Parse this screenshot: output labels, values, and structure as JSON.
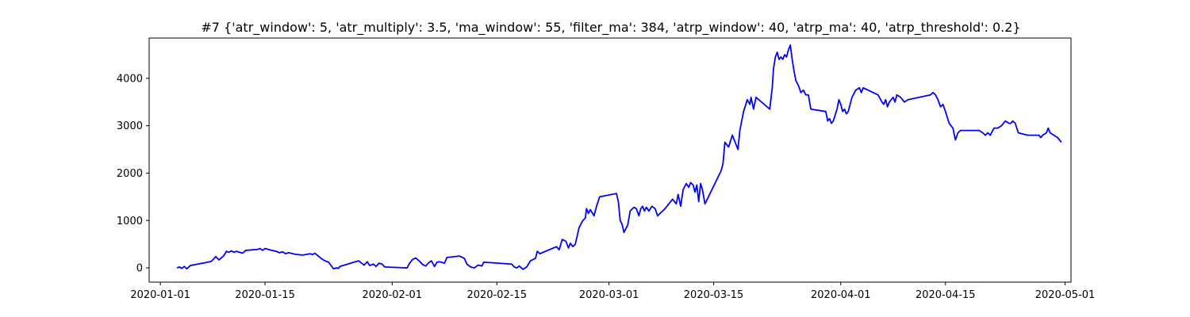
{
  "chart_data": {
    "type": "line",
    "title": "#7 {'atr_window': 5, 'atr_multiply': 3.5, 'ma_window': 55, 'filter_ma': 384, 'atrp_window': 40, 'atrp_ma': 40, 'atrp_threshold': 0.2}",
    "xlabel": "",
    "ylabel": "",
    "x_is_date": true,
    "xlim": [
      "2019-12-30T12:00",
      "2020-05-01T19:00"
    ],
    "ylim": [
      -300,
      4850
    ],
    "xticks": [
      "2020-01-01",
      "2020-01-15",
      "2020-02-01",
      "2020-02-15",
      "2020-03-01",
      "2020-03-15",
      "2020-04-01",
      "2020-04-15",
      "2020-05-01"
    ],
    "yticks": [
      0,
      1000,
      2000,
      3000,
      4000
    ],
    "grid": false,
    "legend": "none",
    "series": [
      {
        "color": "#0000ff",
        "points": [
          [
            "2020-01-03T05:00",
            0
          ],
          [
            "2020-01-03T13:00",
            20
          ],
          [
            "2020-01-03T21:00",
            -10
          ],
          [
            "2020-01-04T05:00",
            30
          ],
          [
            "2020-01-04T13:00",
            -20
          ],
          [
            "2020-01-05T00:00",
            50
          ],
          [
            "2020-01-06T00:00",
            80
          ],
          [
            "2020-01-07T00:00",
            110
          ],
          [
            "2020-01-07T20:00",
            140
          ],
          [
            "2020-01-08T10:00",
            240
          ],
          [
            "2020-01-08T20:00",
            170
          ],
          [
            "2020-01-09T12:00",
            260
          ],
          [
            "2020-01-09T20:00",
            350
          ],
          [
            "2020-01-10T04:00",
            330
          ],
          [
            "2020-01-10T12:00",
            360
          ],
          [
            "2020-01-10T20:00",
            330
          ],
          [
            "2020-01-11T04:00",
            350
          ],
          [
            "2020-01-12T00:00",
            310
          ],
          [
            "2020-01-12T10:00",
            370
          ],
          [
            "2020-01-14T00:00",
            390
          ],
          [
            "2020-01-14T08:00",
            410
          ],
          [
            "2020-01-14T16:00",
            370
          ],
          [
            "2020-01-15T00:00",
            410
          ],
          [
            "2020-01-15T16:00",
            380
          ],
          [
            "2020-01-16T12:00",
            350
          ],
          [
            "2020-01-16T22:00",
            320
          ],
          [
            "2020-01-17T08:00",
            340
          ],
          [
            "2020-01-17T18:00",
            300
          ],
          [
            "2020-01-18T04:00",
            320
          ],
          [
            "2020-01-19T00:00",
            290
          ],
          [
            "2020-01-20T00:00",
            270
          ],
          [
            "2020-01-21T02:00",
            300
          ],
          [
            "2020-01-21T08:00",
            280
          ],
          [
            "2020-01-21T16:00",
            310
          ],
          [
            "2020-01-22T12:00",
            200
          ],
          [
            "2020-01-23T00:00",
            150
          ],
          [
            "2020-01-23T12:00",
            120
          ],
          [
            "2020-01-24T04:00",
            -20
          ],
          [
            "2020-01-24T12:00",
            0
          ],
          [
            "2020-01-24T20:00",
            -10
          ],
          [
            "2020-01-25T00:00",
            30
          ],
          [
            "2020-01-27T12:00",
            150
          ],
          [
            "2020-01-28T06:00",
            60
          ],
          [
            "2020-01-28T16:00",
            130
          ],
          [
            "2020-01-29T00:00",
            50
          ],
          [
            "2020-01-29T12:00",
            80
          ],
          [
            "2020-01-29T20:00",
            30
          ],
          [
            "2020-01-30T06:00",
            100
          ],
          [
            "2020-01-30T16:00",
            80
          ],
          [
            "2020-01-31T00:00",
            20
          ],
          [
            "2020-02-03T00:00",
            0
          ],
          [
            "2020-02-03T08:00",
            100
          ],
          [
            "2020-02-03T18:00",
            180
          ],
          [
            "2020-02-04T04:00",
            210
          ],
          [
            "2020-02-04T16:00",
            140
          ],
          [
            "2020-02-05T02:00",
            70
          ],
          [
            "2020-02-05T12:00",
            40
          ],
          [
            "2020-02-05T20:00",
            100
          ],
          [
            "2020-02-06T06:00",
            150
          ],
          [
            "2020-02-06T16:00",
            30
          ],
          [
            "2020-02-07T00:00",
            120
          ],
          [
            "2020-02-07T08:00",
            130
          ],
          [
            "2020-02-08T00:00",
            100
          ],
          [
            "2020-02-08T08:00",
            220
          ],
          [
            "2020-02-10T00:00",
            250
          ],
          [
            "2020-02-10T16:00",
            200
          ],
          [
            "2020-02-11T00:00",
            80
          ],
          [
            "2020-02-11T12:00",
            20
          ],
          [
            "2020-02-12T00:00",
            0
          ],
          [
            "2020-02-12T12:00",
            60
          ],
          [
            "2020-02-13T00:00",
            40
          ],
          [
            "2020-02-13T06:00",
            120
          ],
          [
            "2020-02-17T00:00",
            80
          ],
          [
            "2020-02-17T08:00",
            20
          ],
          [
            "2020-02-17T16:00",
            0
          ],
          [
            "2020-02-18T00:00",
            40
          ],
          [
            "2020-02-18T12:00",
            -30
          ],
          [
            "2020-02-19T00:00",
            20
          ],
          [
            "2020-02-19T12:00",
            150
          ],
          [
            "2020-02-20T04:00",
            200
          ],
          [
            "2020-02-20T10:00",
            350
          ],
          [
            "2020-02-20T18:00",
            300
          ],
          [
            "2020-02-23T00:00",
            450
          ],
          [
            "2020-02-23T08:00",
            380
          ],
          [
            "2020-02-23T18:00",
            600
          ],
          [
            "2020-02-24T06:00",
            560
          ],
          [
            "2020-02-24T14:00",
            420
          ],
          [
            "2020-02-24T20:00",
            520
          ],
          [
            "2020-02-25T04:00",
            450
          ],
          [
            "2020-02-25T12:00",
            500
          ],
          [
            "2020-02-26T00:00",
            850
          ],
          [
            "2020-02-26T12:00",
            1000
          ],
          [
            "2020-02-26T20:00",
            1050
          ],
          [
            "2020-02-27T00:00",
            1250
          ],
          [
            "2020-02-27T06:00",
            1150
          ],
          [
            "2020-02-27T12:00",
            1230
          ],
          [
            "2020-02-28T00:00",
            1100
          ],
          [
            "2020-02-28T08:00",
            1300
          ],
          [
            "2020-02-28T18:00",
            1500
          ],
          [
            "2020-03-02T00:00",
            1570
          ],
          [
            "2020-03-02T06:00",
            1400
          ],
          [
            "2020-03-02T12:00",
            1000
          ],
          [
            "2020-03-02T18:00",
            920
          ],
          [
            "2020-03-03T00:00",
            750
          ],
          [
            "2020-03-03T12:00",
            900
          ],
          [
            "2020-03-03T20:00",
            1200
          ],
          [
            "2020-03-04T08:00",
            1280
          ],
          [
            "2020-03-04T16:00",
            1250
          ],
          [
            "2020-03-05T00:00",
            1100
          ],
          [
            "2020-03-05T06:00",
            1250
          ],
          [
            "2020-03-05T12:00",
            1300
          ],
          [
            "2020-03-05T18:00",
            1200
          ],
          [
            "2020-03-06T00:00",
            1280
          ],
          [
            "2020-03-06T08:00",
            1200
          ],
          [
            "2020-03-06T18:00",
            1300
          ],
          [
            "2020-03-07T04:00",
            1250
          ],
          [
            "2020-03-07T12:00",
            1100
          ],
          [
            "2020-03-08T12:00",
            1250
          ],
          [
            "2020-03-09T12:00",
            1450
          ],
          [
            "2020-03-10T00:00",
            1350
          ],
          [
            "2020-03-10T06:00",
            1550
          ],
          [
            "2020-03-10T14:00",
            1300
          ],
          [
            "2020-03-10T22:00",
            1650
          ],
          [
            "2020-03-11T08:00",
            1780
          ],
          [
            "2020-03-11T16:00",
            1700
          ],
          [
            "2020-03-11T22:00",
            1800
          ],
          [
            "2020-03-12T06:00",
            1750
          ],
          [
            "2020-03-12T12:00",
            1600
          ],
          [
            "2020-03-12T18:00",
            1750
          ],
          [
            "2020-03-13T00:00",
            1400
          ],
          [
            "2020-03-13T06:00",
            1780
          ],
          [
            "2020-03-13T12:00",
            1650
          ],
          [
            "2020-03-13T20:00",
            1350
          ],
          [
            "2020-03-16T00:00",
            2050
          ],
          [
            "2020-03-16T06:00",
            2200
          ],
          [
            "2020-03-16T12:00",
            2650
          ],
          [
            "2020-03-17T00:00",
            2550
          ],
          [
            "2020-03-17T12:00",
            2800
          ],
          [
            "2020-03-18T00:00",
            2600
          ],
          [
            "2020-03-18T06:00",
            2500
          ],
          [
            "2020-03-18T12:00",
            2900
          ],
          [
            "2020-03-19T00:00",
            3300
          ],
          [
            "2020-03-19T12:00",
            3550
          ],
          [
            "2020-03-19T20:00",
            3450
          ],
          [
            "2020-03-20T00:00",
            3600
          ],
          [
            "2020-03-20T08:00",
            3350
          ],
          [
            "2020-03-20T16:00",
            3600
          ],
          [
            "2020-03-22T12:00",
            3350
          ],
          [
            "2020-03-22T20:00",
            3800
          ],
          [
            "2020-03-23T00:00",
            4200
          ],
          [
            "2020-03-23T06:00",
            4450
          ],
          [
            "2020-03-23T12:00",
            4550
          ],
          [
            "2020-03-23T18:00",
            4400
          ],
          [
            "2020-03-24T00:00",
            4450
          ],
          [
            "2020-03-24T06:00",
            4400
          ],
          [
            "2020-03-24T12:00",
            4500
          ],
          [
            "2020-03-24T18:00",
            4450
          ],
          [
            "2020-03-25T00:00",
            4600
          ],
          [
            "2020-03-25T06:00",
            4700
          ],
          [
            "2020-03-25T12:00",
            4400
          ],
          [
            "2020-03-25T18:00",
            4150
          ],
          [
            "2020-03-26T00:00",
            3950
          ],
          [
            "2020-03-26T08:00",
            3850
          ],
          [
            "2020-03-26T16:00",
            3700
          ],
          [
            "2020-03-27T00:00",
            3750
          ],
          [
            "2020-03-27T08:00",
            3650
          ],
          [
            "2020-03-27T16:00",
            3650
          ],
          [
            "2020-03-28T00:00",
            3350
          ],
          [
            "2020-03-30T00:00",
            3300
          ],
          [
            "2020-03-30T06:00",
            3100
          ],
          [
            "2020-03-30T12:00",
            3150
          ],
          [
            "2020-03-30T18:00",
            3050
          ],
          [
            "2020-03-31T00:00",
            3100
          ],
          [
            "2020-03-31T12:00",
            3350
          ],
          [
            "2020-03-31T18:00",
            3550
          ],
          [
            "2020-04-01T00:00",
            3450
          ],
          [
            "2020-04-01T06:00",
            3300
          ],
          [
            "2020-04-01T12:00",
            3350
          ],
          [
            "2020-04-01T18:00",
            3250
          ],
          [
            "2020-04-02T00:00",
            3300
          ],
          [
            "2020-04-02T12:00",
            3600
          ],
          [
            "2020-04-03T00:00",
            3750
          ],
          [
            "2020-04-03T12:00",
            3800
          ],
          [
            "2020-04-03T18:00",
            3700
          ],
          [
            "2020-04-04T00:00",
            3800
          ],
          [
            "2020-04-06T00:00",
            3650
          ],
          [
            "2020-04-06T12:00",
            3500
          ],
          [
            "2020-04-06T18:00",
            3450
          ],
          [
            "2020-04-07T00:00",
            3550
          ],
          [
            "2020-04-07T06:00",
            3400
          ],
          [
            "2020-04-07T12:00",
            3500
          ],
          [
            "2020-04-07T18:00",
            3550
          ],
          [
            "2020-04-08T00:00",
            3600
          ],
          [
            "2020-04-08T06:00",
            3500
          ],
          [
            "2020-04-08T12:00",
            3650
          ],
          [
            "2020-04-09T00:00",
            3600
          ],
          [
            "2020-04-09T12:00",
            3500
          ],
          [
            "2020-04-10T00:00",
            3550
          ],
          [
            "2020-04-13T00:00",
            3650
          ],
          [
            "2020-04-13T08:00",
            3700
          ],
          [
            "2020-04-13T16:00",
            3650
          ],
          [
            "2020-04-14T00:00",
            3550
          ],
          [
            "2020-04-14T08:00",
            3400
          ],
          [
            "2020-04-14T16:00",
            3450
          ],
          [
            "2020-04-15T00:00",
            3300
          ],
          [
            "2020-04-15T12:00",
            3050
          ],
          [
            "2020-04-16T00:00",
            2950
          ],
          [
            "2020-04-16T08:00",
            2700
          ],
          [
            "2020-04-16T16:00",
            2850
          ],
          [
            "2020-04-17T00:00",
            2900
          ],
          [
            "2020-04-19T12:00",
            2900
          ],
          [
            "2020-04-20T00:00",
            2850
          ],
          [
            "2020-04-20T08:00",
            2800
          ],
          [
            "2020-04-20T16:00",
            2850
          ],
          [
            "2020-04-21T00:00",
            2800
          ],
          [
            "2020-04-21T12:00",
            2950
          ],
          [
            "2020-04-22T00:00",
            2950
          ],
          [
            "2020-04-22T12:00",
            3000
          ],
          [
            "2020-04-23T00:00",
            3100
          ],
          [
            "2020-04-23T12:00",
            3050
          ],
          [
            "2020-04-23T18:00",
            3050
          ],
          [
            "2020-04-24T00:00",
            3100
          ],
          [
            "2020-04-24T08:00",
            3050
          ],
          [
            "2020-04-24T18:00",
            2850
          ],
          [
            "2020-04-26T00:00",
            2800
          ],
          [
            "2020-04-27T12:00",
            2800
          ],
          [
            "2020-04-27T18:00",
            2750
          ],
          [
            "2020-04-28T00:00",
            2800
          ],
          [
            "2020-04-28T12:00",
            2850
          ],
          [
            "2020-04-28T18:00",
            2950
          ],
          [
            "2020-04-29T00:00",
            2850
          ],
          [
            "2020-04-29T12:00",
            2800
          ],
          [
            "2020-04-30T00:00",
            2750
          ],
          [
            "2020-04-30T12:00",
            2650
          ]
        ]
      }
    ]
  }
}
